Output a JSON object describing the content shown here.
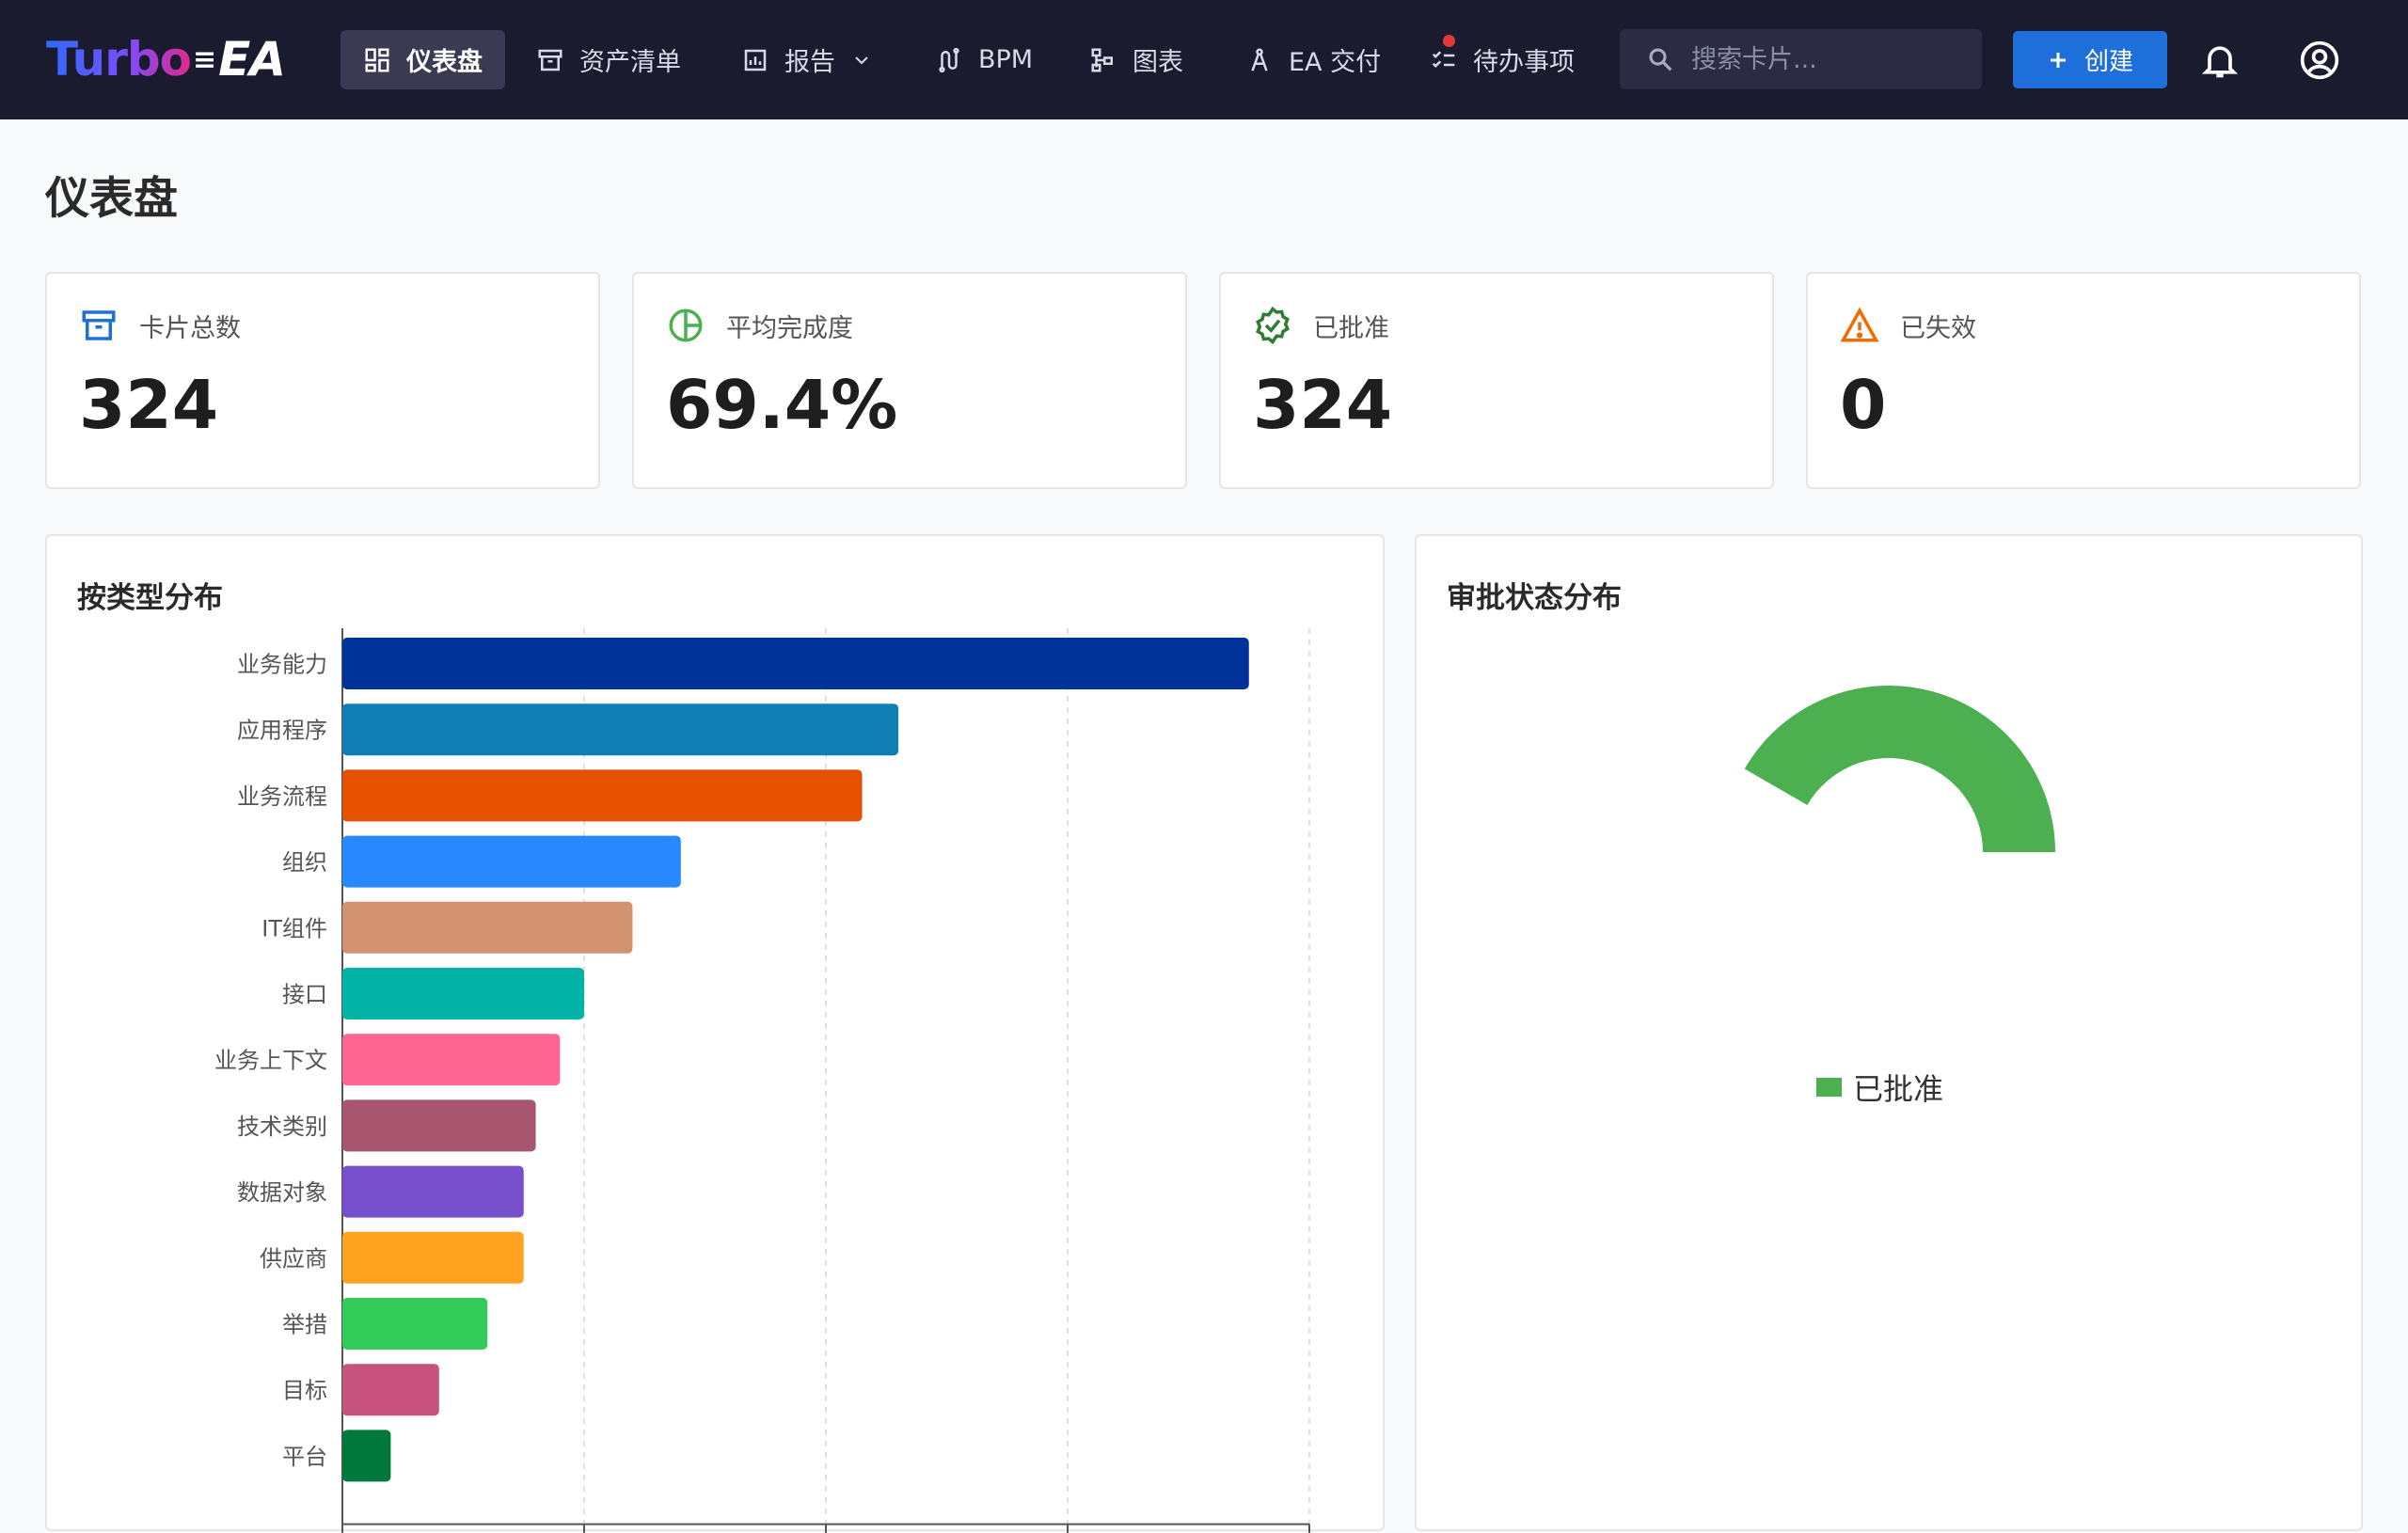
{
  "app": {
    "logo_part1": "Turbo",
    "logo_part2": "EA"
  },
  "nav": {
    "items": [
      {
        "label": "仪表盘",
        "icon": "dashboard-icon"
      },
      {
        "label": "资产清单",
        "icon": "archive-icon"
      },
      {
        "label": "报告",
        "icon": "report-icon"
      },
      {
        "label": "BPM",
        "icon": "bpm-icon"
      },
      {
        "label": "图表",
        "icon": "diagram-icon"
      },
      {
        "label": "EA 交付",
        "icon": "compass-icon"
      },
      {
        "label": "待办事项",
        "icon": "todo-icon"
      }
    ],
    "search_placeholder": "搜索卡片...",
    "create_label": "创建"
  },
  "page": {
    "title": "仪表盘"
  },
  "stats": [
    {
      "label": "卡片总数",
      "value": "324",
      "icon": "archive-icon",
      "color": "#1e6fd9"
    },
    {
      "label": "平均完成度",
      "value": "69.4%",
      "icon": "pie-icon",
      "color": "#4caf50"
    },
    {
      "label": "已批准",
      "value": "324",
      "icon": "verified-icon",
      "color": "#2e7d32"
    },
    {
      "label": "已失效",
      "value": "0",
      "icon": "warning-icon",
      "color": "#ef6c00"
    }
  ],
  "panels": {
    "by_type_title": "按类型分布",
    "approval_title": "审批状态分布"
  },
  "chart_data": [
    {
      "type": "bar",
      "orientation": "horizontal",
      "title": "按类型分布",
      "categories": [
        "业务能力",
        "应用程序",
        "业务流程",
        "组织",
        "IT组件",
        "接口",
        "业务上下文",
        "技术类别",
        "数据对象",
        "供应商",
        "举措",
        "目标",
        "平台"
      ],
      "values": [
        75,
        46,
        43,
        28,
        24,
        20,
        18,
        16,
        15,
        15,
        12,
        8,
        4
      ],
      "colors": [
        "#003399",
        "#0f7eb5",
        "#e65100",
        "#2889ff",
        "#d29270",
        "#02b4a6",
        "#ff6590",
        "#a8566f",
        "#774fcc",
        "#ffa31f",
        "#33cc58",
        "#c7527d",
        "#007a3c"
      ],
      "xlim": [
        0,
        80
      ],
      "grid": true
    },
    {
      "type": "pie",
      "variant": "half-donut",
      "title": "审批状态分布",
      "categories": [
        "已批准"
      ],
      "values": [
        324
      ],
      "colors": [
        "#4caf50"
      ],
      "legend": "bottom"
    }
  ]
}
